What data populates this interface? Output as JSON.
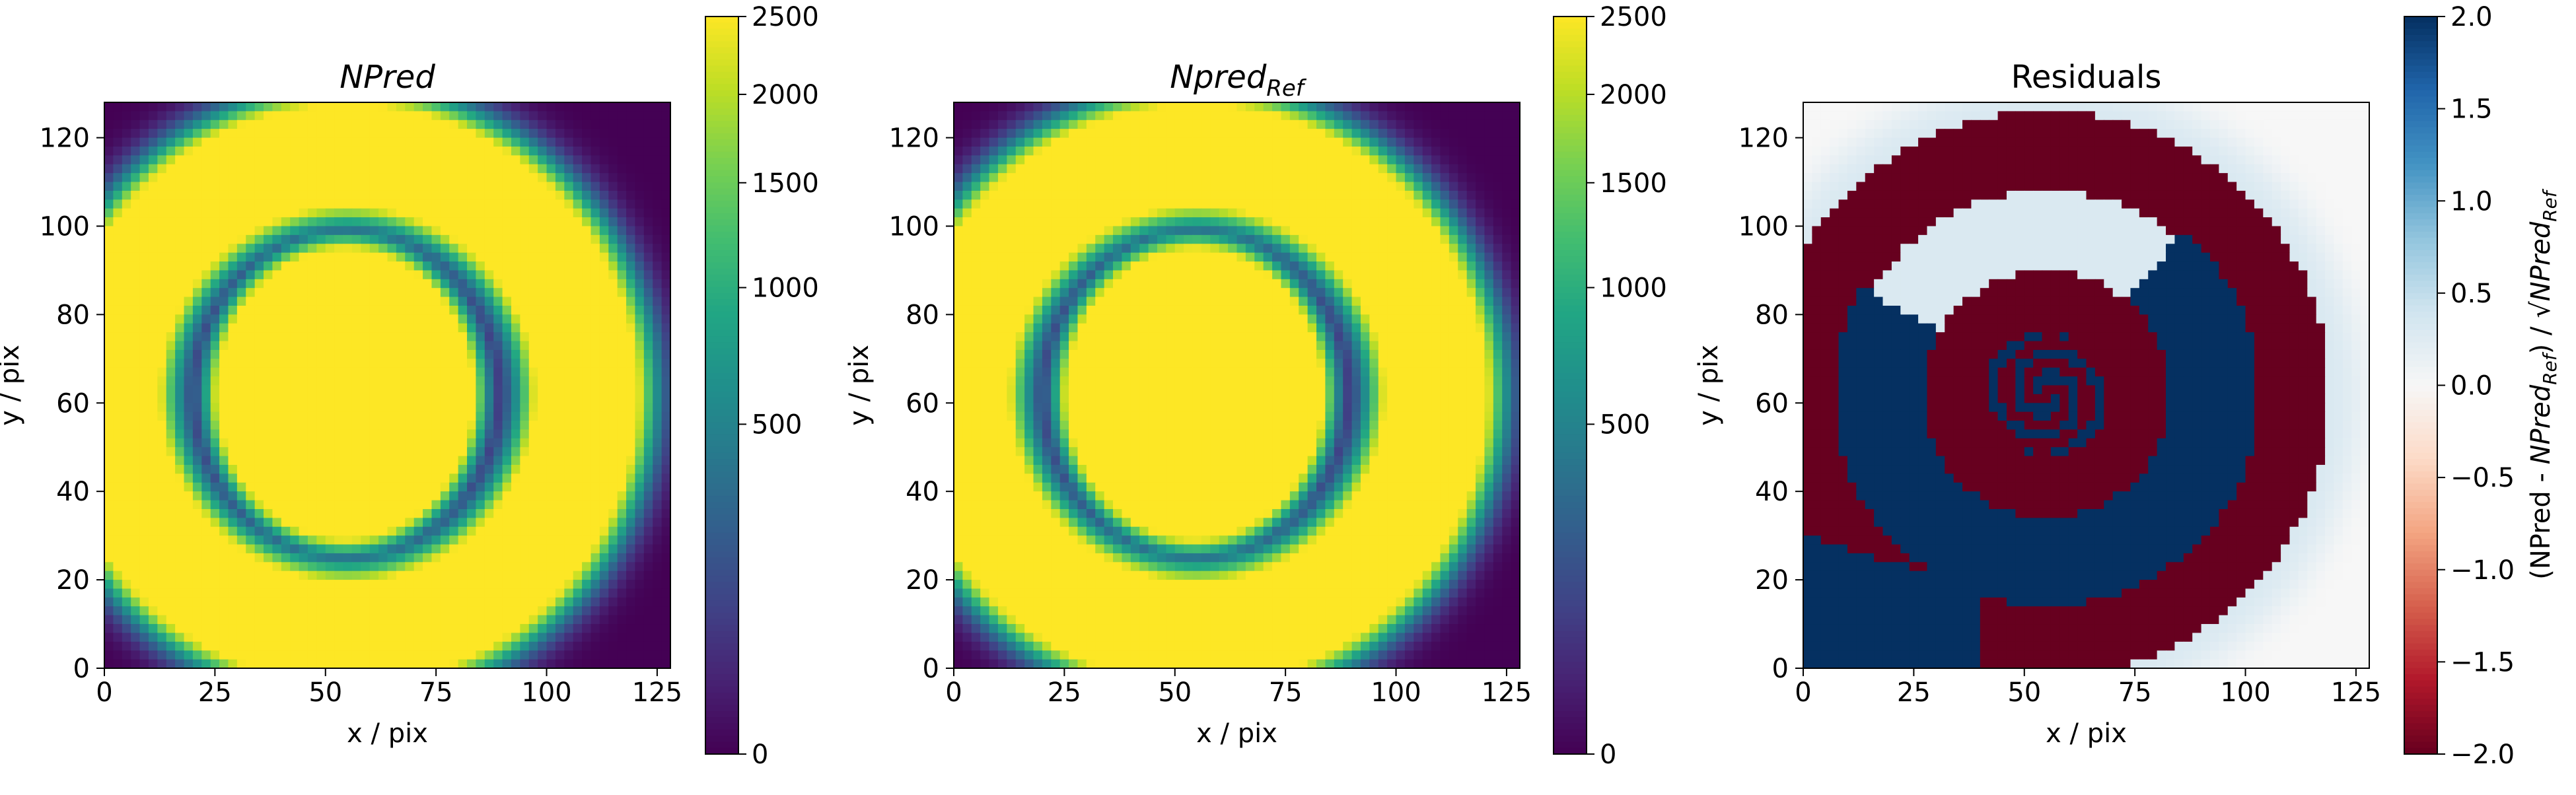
{
  "figure": {
    "layout": "three panels side by side, each with a vertical colorbar"
  },
  "chart_data": [
    {
      "type": "heatmap",
      "title": "NPred",
      "title_style": "italic",
      "xlabel": "x / pix",
      "ylabel": "y / pix",
      "xlim": [
        0,
        128
      ],
      "ylim": [
        0,
        128
      ],
      "xticks": [
        0,
        25,
        50,
        75,
        100,
        125
      ],
      "yticks": [
        0,
        20,
        40,
        60,
        80,
        100,
        120
      ],
      "colormap": "viridis",
      "norm": "sqrt",
      "colorbar": {
        "label": "",
        "min": 0,
        "max": 2500,
        "ticks": [
          0,
          500,
          1000,
          1500,
          2000,
          2500
        ]
      },
      "image_model": {
        "center": [
          55,
          62
        ],
        "outer_ring": {
          "inner_radius": 46,
          "outer_radius": 62,
          "value": 2500
        },
        "dark_gap": {
          "inner_radius": 36,
          "outer_radius": 46,
          "value": 150
        },
        "core": {
          "radius": 30,
          "value": 2500,
          "x_extent": [
            28,
            81
          ],
          "y_extent": [
            32,
            92
          ]
        },
        "outside_value": 0
      }
    },
    {
      "type": "heatmap",
      "title": "Npred",
      "title_subscript": "Ref",
      "title_style": "italic",
      "xlabel": "x / pix",
      "ylabel": "y / pix",
      "xlim": [
        0,
        128
      ],
      "ylim": [
        0,
        128
      ],
      "xticks": [
        0,
        25,
        50,
        75,
        100,
        125
      ],
      "yticks": [
        0,
        20,
        40,
        60,
        80,
        100,
        120
      ],
      "colormap": "viridis",
      "norm": "sqrt",
      "colorbar": {
        "label": "",
        "min": 0,
        "max": 2500,
        "ticks": [
          0,
          500,
          1000,
          1500,
          2000,
          2500
        ]
      },
      "image_model": {
        "center": [
          55,
          62
        ],
        "outer_ring": {
          "inner_radius": 46,
          "outer_radius": 62,
          "value": 2500
        },
        "dark_gap": {
          "inner_radius": 36,
          "outer_radius": 46,
          "value": 150
        },
        "core": {
          "radius": 30,
          "value": 2500,
          "x_extent": [
            28,
            81
          ],
          "y_extent": [
            32,
            92
          ]
        },
        "outside_value": 0
      }
    },
    {
      "type": "heatmap",
      "title": "Residuals",
      "title_style": "normal",
      "xlabel": "x / pix",
      "ylabel": "y / pix",
      "xlim": [
        0,
        128
      ],
      "ylim": [
        0,
        128
      ],
      "xticks": [
        0,
        25,
        50,
        75,
        100,
        125
      ],
      "yticks": [
        0,
        20,
        40,
        60,
        80,
        100,
        120
      ],
      "colormap": "RdBu",
      "norm": "linear",
      "colorbar": {
        "label_parts": [
          "(NPred - ",
          "NPred",
          "Ref",
          ") / √",
          "NPred",
          "Ref"
        ],
        "min": -2.0,
        "max": 2.0,
        "ticks": [
          -2.0,
          -1.5,
          -1.0,
          -0.5,
          0.0,
          0.5,
          1.0,
          1.5,
          2.0
        ],
        "tick_labels": [
          "−2.0",
          "−1.5",
          "−1.0",
          "−0.5",
          "0.0",
          "0.5",
          "1.0",
          "1.5",
          "2.0"
        ]
      },
      "image_model": {
        "center": [
          55,
          62
        ],
        "background_value": 0.3,
        "outer_red_ring": {
          "inner_radius": 46,
          "outer_radius": 64,
          "value": -2.0
        },
        "blue_crescent": {
          "inner_radius": 28,
          "outer_radius": 46,
          "angle_range_deg": [
            150,
            410
          ],
          "value": 2.0
        },
        "inner_red_region": {
          "radius": 28,
          "value": -2.0
        },
        "inner_swirl": {
          "radius": 14,
          "value_range": [
            -2.0,
            2.0
          ]
        },
        "lower_left_blue": {
          "x_range": [
            0,
            40
          ],
          "y_range": [
            0,
            30
          ],
          "value": 2.0
        }
      }
    }
  ]
}
